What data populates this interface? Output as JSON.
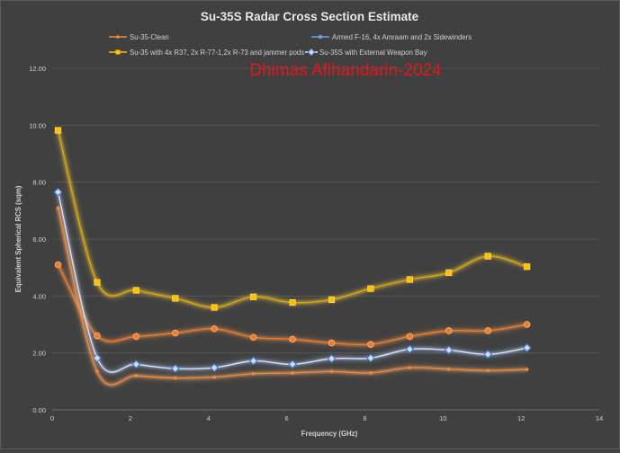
{
  "chart_data": {
    "type": "scatter",
    "title": "Su-35S Radar Cross Section Estimate",
    "watermark": "Dhimas Afihandarin-2024",
    "xlabel": "Frequency (GHz)",
    "ylabel": "Equivalent Spherical RCS (sqm)",
    "xlim": [
      0,
      14
    ],
    "ylim": [
      0,
      12
    ],
    "x_ticks": [
      0,
      2,
      4,
      6,
      8,
      10,
      12,
      14
    ],
    "y_ticks": [
      0,
      2,
      4,
      6,
      8,
      10,
      12
    ],
    "x_tick_labels": [
      "0",
      "2",
      "4",
      "6",
      "8",
      "10",
      "12",
      "14"
    ],
    "y_tick_labels": [
      "0.00",
      "2.00",
      "4.00",
      "6.00",
      "8.00",
      "10.00",
      "12.00"
    ],
    "grid": "horizontal",
    "legend_position": "top",
    "smooth_lines": true,
    "series": [
      {
        "name": "Su-35-Clean",
        "color": "#f08a3c",
        "marker": "dot",
        "x": [
          0.15,
          1.15,
          2.15,
          3.15,
          4.15,
          5.15,
          6.15,
          7.15,
          8.15,
          9.15,
          10.15,
          11.15,
          12.15
        ],
        "y": [
          7.1,
          1.35,
          1.2,
          1.12,
          1.15,
          1.27,
          1.3,
          1.35,
          1.3,
          1.48,
          1.43,
          1.38,
          1.42
        ]
      },
      {
        "name": "Armed F-16, 4x Amraam and 2x Sidewinders",
        "color": "#ee7d2b",
        "marker": "circle",
        "x": [
          0.15,
          1.15,
          2.15,
          3.15,
          4.15,
          5.15,
          6.15,
          7.15,
          8.15,
          9.15,
          10.15,
          11.15,
          12.15
        ],
        "y": [
          5.1,
          2.6,
          2.58,
          2.7,
          2.85,
          2.55,
          2.48,
          2.35,
          2.3,
          2.58,
          2.78,
          2.78,
          3.0
        ]
      },
      {
        "name": "Su-35 with 4x R37, 2x R-77-1,2x R-73 and jammer pods",
        "color": "#ffc000",
        "marker": "square",
        "x": [
          0.15,
          1.15,
          2.15,
          3.15,
          4.15,
          5.15,
          6.15,
          7.15,
          8.15,
          9.15,
          10.15,
          11.15,
          12.15
        ],
        "y": [
          9.82,
          4.48,
          4.2,
          3.92,
          3.6,
          3.97,
          3.77,
          3.87,
          4.26,
          4.58,
          4.82,
          5.4,
          5.03
        ]
      },
      {
        "name": "Su-35S with External Weapon Bay",
        "color": "#ffffff",
        "marker": "diamond",
        "x": [
          0.15,
          1.15,
          2.15,
          3.15,
          4.15,
          5.15,
          6.15,
          7.15,
          8.15,
          9.15,
          10.15,
          11.15,
          12.15
        ],
        "y": [
          7.65,
          1.82,
          1.6,
          1.45,
          1.48,
          1.72,
          1.6,
          1.8,
          1.82,
          2.13,
          2.1,
          1.95,
          2.18
        ]
      }
    ]
  }
}
